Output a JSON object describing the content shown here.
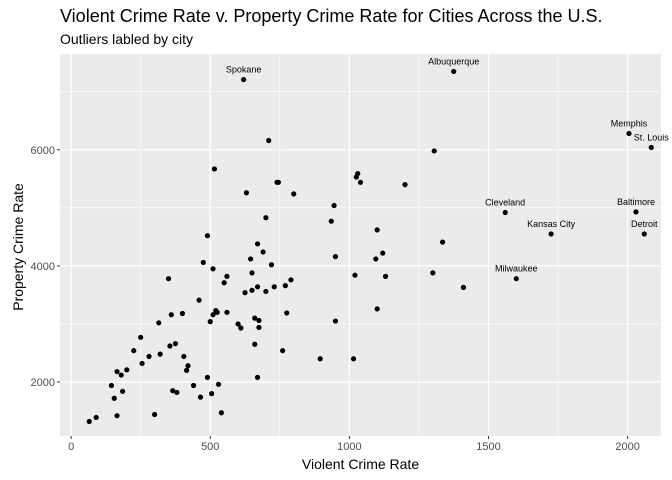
{
  "chart_data": {
    "type": "scatter",
    "title": "Violent Crime Rate v. Property Crime Rate for Cities Across the U.S.",
    "subtitle": "Outliers labled by city",
    "xlabel": "Violent Crime Rate",
    "ylabel": "Property Crime Rate",
    "xlim": [
      -40,
      2120
    ],
    "ylim": [
      1070,
      7650
    ],
    "xticks": [
      0,
      500,
      1000,
      1500,
      2000
    ],
    "yticks": [
      2000,
      4000,
      6000
    ],
    "x_tick_labels": [
      "0",
      "500",
      "1000",
      "1500",
      "2000"
    ],
    "y_tick_labels": [
      "2000",
      "4000",
      "6000"
    ],
    "grid": true,
    "background": "#ebebeb",
    "grid_color": "#ffffff",
    "point_color": "#000000",
    "points": [
      {
        "x": 65,
        "y": 1320
      },
      {
        "x": 90,
        "y": 1390
      },
      {
        "x": 145,
        "y": 1940
      },
      {
        "x": 155,
        "y": 1720
      },
      {
        "x": 165,
        "y": 2180
      },
      {
        "x": 165,
        "y": 1420
      },
      {
        "x": 180,
        "y": 2120
      },
      {
        "x": 185,
        "y": 1840
      },
      {
        "x": 200,
        "y": 2210
      },
      {
        "x": 225,
        "y": 2540
      },
      {
        "x": 250,
        "y": 2770
      },
      {
        "x": 255,
        "y": 2320
      },
      {
        "x": 280,
        "y": 2440
      },
      {
        "x": 300,
        "y": 1440
      },
      {
        "x": 315,
        "y": 3020
      },
      {
        "x": 320,
        "y": 2480
      },
      {
        "x": 350,
        "y": 3780
      },
      {
        "x": 355,
        "y": 2620
      },
      {
        "x": 360,
        "y": 3160
      },
      {
        "x": 365,
        "y": 1850
      },
      {
        "x": 380,
        "y": 1820
      },
      {
        "x": 375,
        "y": 2660
      },
      {
        "x": 400,
        "y": 3180
      },
      {
        "x": 405,
        "y": 2440
      },
      {
        "x": 415,
        "y": 2200
      },
      {
        "x": 420,
        "y": 2280
      },
      {
        "x": 440,
        "y": 1940
      },
      {
        "x": 460,
        "y": 3410
      },
      {
        "x": 465,
        "y": 1740
      },
      {
        "x": 475,
        "y": 4060
      },
      {
        "x": 490,
        "y": 4520
      },
      {
        "x": 490,
        "y": 2080
      },
      {
        "x": 500,
        "y": 3040
      },
      {
        "x": 505,
        "y": 1800
      },
      {
        "x": 510,
        "y": 3950
      },
      {
        "x": 510,
        "y": 3160
      },
      {
        "x": 515,
        "y": 5670
      },
      {
        "x": 520,
        "y": 3230
      },
      {
        "x": 525,
        "y": 3200
      },
      {
        "x": 530,
        "y": 1960
      },
      {
        "x": 540,
        "y": 1470
      },
      {
        "x": 550,
        "y": 3710
      },
      {
        "x": 560,
        "y": 3820
      },
      {
        "x": 560,
        "y": 3200
      },
      {
        "x": 600,
        "y": 3000
      },
      {
        "x": 610,
        "y": 2930
      },
      {
        "x": 620,
        "y": 7210
      },
      {
        "x": 625,
        "y": 3540
      },
      {
        "x": 630,
        "y": 5260
      },
      {
        "x": 645,
        "y": 4120
      },
      {
        "x": 650,
        "y": 3580
      },
      {
        "x": 650,
        "y": 3880
      },
      {
        "x": 660,
        "y": 3100
      },
      {
        "x": 660,
        "y": 2650
      },
      {
        "x": 670,
        "y": 4380
      },
      {
        "x": 670,
        "y": 3640
      },
      {
        "x": 670,
        "y": 2080
      },
      {
        "x": 675,
        "y": 2940
      },
      {
        "x": 675,
        "y": 3060
      },
      {
        "x": 690,
        "y": 4240
      },
      {
        "x": 700,
        "y": 3560
      },
      {
        "x": 700,
        "y": 4830
      },
      {
        "x": 710,
        "y": 6160
      },
      {
        "x": 720,
        "y": 4020
      },
      {
        "x": 730,
        "y": 3640
      },
      {
        "x": 740,
        "y": 5440
      },
      {
        "x": 745,
        "y": 5440
      },
      {
        "x": 760,
        "y": 2540
      },
      {
        "x": 770,
        "y": 3660
      },
      {
        "x": 775,
        "y": 3190
      },
      {
        "x": 790,
        "y": 3760
      },
      {
        "x": 800,
        "y": 5240
      },
      {
        "x": 895,
        "y": 2400
      },
      {
        "x": 935,
        "y": 4770
      },
      {
        "x": 945,
        "y": 5040
      },
      {
        "x": 950,
        "y": 4160
      },
      {
        "x": 950,
        "y": 3050
      },
      {
        "x": 1015,
        "y": 2400
      },
      {
        "x": 1020,
        "y": 3840
      },
      {
        "x": 1025,
        "y": 5530
      },
      {
        "x": 1030,
        "y": 5590
      },
      {
        "x": 1040,
        "y": 5440
      },
      {
        "x": 1095,
        "y": 4120
      },
      {
        "x": 1100,
        "y": 4620
      },
      {
        "x": 1100,
        "y": 3260
      },
      {
        "x": 1120,
        "y": 4220
      },
      {
        "x": 1130,
        "y": 3820
      },
      {
        "x": 1200,
        "y": 5400
      },
      {
        "x": 1300,
        "y": 3880
      },
      {
        "x": 1305,
        "y": 5980
      },
      {
        "x": 1335,
        "y": 4410
      },
      {
        "x": 1375,
        "y": 7350
      },
      {
        "x": 1410,
        "y": 3630
      },
      {
        "x": 1560,
        "y": 4920
      },
      {
        "x": 1600,
        "y": 3780
      },
      {
        "x": 1725,
        "y": 4550
      },
      {
        "x": 2005,
        "y": 6280
      },
      {
        "x": 2030,
        "y": 4930
      },
      {
        "x": 2060,
        "y": 4550
      },
      {
        "x": 2085,
        "y": 6040
      }
    ],
    "annotations": [
      {
        "label": "Spokane",
        "x": 620,
        "y": 7210
      },
      {
        "label": "Albuquerque",
        "x": 1375,
        "y": 7350
      },
      {
        "label": "Memphis",
        "x": 2005,
        "y": 6280
      },
      {
        "label": "St. Louis",
        "x": 2085,
        "y": 6040
      },
      {
        "label": "Cleveland",
        "x": 1560,
        "y": 4920
      },
      {
        "label": "Baltimore",
        "x": 2030,
        "y": 4930
      },
      {
        "label": "Kansas City",
        "x": 1725,
        "y": 4550
      },
      {
        "label": "Detroit",
        "x": 2060,
        "y": 4550
      },
      {
        "label": "Milwaukee",
        "x": 1600,
        "y": 3780
      }
    ]
  }
}
